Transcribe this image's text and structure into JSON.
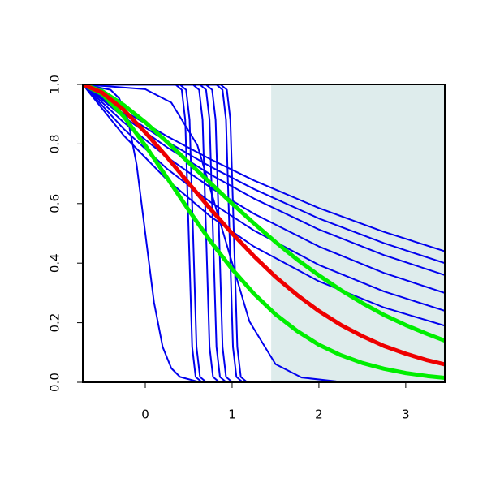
{
  "chart_data": {
    "type": "line",
    "xlim": [
      -0.72,
      3.45
    ],
    "ylim": [
      0,
      1
    ],
    "xticks": [
      0,
      1,
      2,
      3
    ],
    "yticks": [
      {
        "value": 0,
        "label": "0.0"
      },
      {
        "value": 0.2,
        "label": "0.2"
      },
      {
        "value": 0.4,
        "label": "0.4"
      },
      {
        "value": 0.6,
        "label": "0.6"
      },
      {
        "value": 0.8,
        "label": "0.8"
      },
      {
        "value": 1,
        "label": "1.0"
      }
    ],
    "shaded_xmin": 1.45,
    "shade_color": "#deecec",
    "series": [
      {
        "color": "#0000ee",
        "x": [
          -0.72,
          -0.25,
          0.25,
          0.75,
          1.25,
          2,
          2.75,
          3.45
        ],
        "values": [
          1,
          0.912,
          0.826,
          0.749,
          0.678,
          0.585,
          0.505,
          0.44
        ]
      },
      {
        "color": "#0000ee",
        "x": [
          -0.72,
          -0.25,
          0.25,
          0.75,
          1.25,
          2,
          2.75,
          3.45
        ],
        "values": [
          1,
          0.902,
          0.808,
          0.724,
          0.649,
          0.55,
          0.467,
          0.4
        ]
      },
      {
        "color": "#0000ee",
        "x": [
          -0.72,
          -0.25,
          0.25,
          0.75,
          1.25,
          2,
          2.75,
          3.45
        ],
        "values": [
          1,
          0.891,
          0.789,
          0.698,
          0.617,
          0.513,
          0.427,
          0.36
        ]
      },
      {
        "color": "#0000ee",
        "x": [
          -0.72,
          -0.25,
          0.25,
          0.75,
          1.25,
          2,
          2.75,
          3.45
        ],
        "values": [
          1,
          0.873,
          0.756,
          0.654,
          0.566,
          0.456,
          0.367,
          0.3
        ]
      },
      {
        "color": "#0000ee",
        "x": [
          -0.72,
          -0.25,
          0.25,
          0.75,
          1.25,
          2,
          2.75,
          3.45
        ],
        "values": [
          1,
          0.851,
          0.717,
          0.605,
          0.51,
          0.394,
          0.305,
          0.24
        ]
      },
      {
        "color": "#0000ee",
        "x": [
          -0.72,
          -0.25,
          0.25,
          0.75,
          1.25,
          2,
          2.75,
          3.45
        ],
        "values": [
          1,
          0.829,
          0.68,
          0.557,
          0.456,
          0.339,
          0.251,
          0.19
        ]
      },
      {
        "color": "#0000ee",
        "x": [
          -0.72,
          -0.4,
          -0.3,
          -0.2,
          -0.1,
          0,
          0.1,
          0.2,
          0.3,
          0.4,
          0.6,
          3.45
        ],
        "values": [
          1,
          0.982,
          0.953,
          0.881,
          0.731,
          0.5,
          0.269,
          0.119,
          0.047,
          0.018,
          0.0025,
          0
        ]
      },
      {
        "color": "#0000ee",
        "x": [
          -0.72,
          0,
          0.3,
          0.6,
          0.9,
          1.2,
          1.5,
          1.8,
          2.2,
          3.45
        ],
        "values": [
          1,
          0.984,
          0.939,
          0.796,
          0.5,
          0.204,
          0.061,
          0.016,
          0.003,
          0
        ]
      },
      {
        "color": "#0000ee",
        "x": [
          -0.72,
          0.35,
          0.42,
          0.46,
          0.5,
          0.54,
          0.58,
          0.65,
          3.45
        ],
        "values": [
          1,
          0.999,
          0.982,
          0.881,
          0.5,
          0.119,
          0.018,
          0.001,
          0
        ]
      },
      {
        "color": "#0000ee",
        "x": [
          -0.72,
          0.4,
          0.47,
          0.51,
          0.55,
          0.59,
          0.63,
          0.7,
          3.45
        ],
        "values": [
          1,
          0.999,
          0.982,
          0.881,
          0.5,
          0.119,
          0.018,
          0.001,
          0
        ]
      },
      {
        "color": "#0000ee",
        "x": [
          -0.72,
          0.55,
          0.62,
          0.66,
          0.7,
          0.74,
          0.78,
          0.85,
          3.45
        ],
        "values": [
          1,
          0.999,
          0.982,
          0.881,
          0.5,
          0.119,
          0.018,
          0.001,
          0
        ]
      },
      {
        "color": "#0000ee",
        "x": [
          -0.72,
          0.63,
          0.7,
          0.74,
          0.78,
          0.82,
          0.86,
          0.93,
          3.45
        ],
        "values": [
          1,
          0.999,
          0.982,
          0.881,
          0.5,
          0.119,
          0.018,
          0.001,
          0
        ]
      },
      {
        "color": "#0000ee",
        "x": [
          -0.72,
          0.7,
          0.77,
          0.81,
          0.85,
          0.89,
          0.93,
          1,
          3.45
        ],
        "values": [
          1,
          0.999,
          0.982,
          0.881,
          0.5,
          0.119,
          0.018,
          0.001,
          0
        ]
      },
      {
        "color": "#0000ee",
        "x": [
          -0.72,
          0.82,
          0.89,
          0.93,
          0.97,
          1.01,
          1.05,
          1.12,
          3.45
        ],
        "values": [
          1,
          0.999,
          0.982,
          0.881,
          0.5,
          0.119,
          0.018,
          0.001,
          0
        ]
      },
      {
        "color": "#0000ee",
        "x": [
          -0.72,
          0.87,
          0.94,
          0.98,
          1.02,
          1.06,
          1.1,
          1.17,
          3.45
        ],
        "values": [
          1,
          0.999,
          0.982,
          0.881,
          0.5,
          0.119,
          0.018,
          0.001,
          0
        ]
      }
    ],
    "highlight_series": [
      {
        "color": "#00ee00",
        "x": [
          -0.72,
          -0.5,
          -0.25,
          0,
          0.25,
          0.5,
          0.75,
          1,
          1.25,
          1.5,
          1.75,
          2,
          2.25,
          2.5,
          2.75,
          3,
          3.25,
          3.45
        ],
        "values": [
          1,
          0.978,
          0.931,
          0.873,
          0.807,
          0.738,
          0.669,
          0.6,
          0.534,
          0.471,
          0.412,
          0.359,
          0.31,
          0.266,
          0.226,
          0.192,
          0.162,
          0.14
        ]
      },
      {
        "color": "#00ee00",
        "x": [
          -0.72,
          -0.5,
          -0.25,
          0,
          0.25,
          0.5,
          0.75,
          1,
          1.25,
          1.5,
          1.75,
          2,
          2.25,
          2.5,
          2.75,
          3,
          3.25,
          3.45
        ],
        "values": [
          1,
          0.968,
          0.893,
          0.795,
          0.687,
          0.578,
          0.474,
          0.38,
          0.298,
          0.228,
          0.172,
          0.126,
          0.0914,
          0.0649,
          0.0454,
          0.031,
          0.0209,
          0.0151
        ]
      },
      {
        "color": "#ee0000",
        "x": [
          -0.72,
          -0.5,
          -0.25,
          0,
          0.25,
          0.5,
          0.75,
          1,
          1.25,
          1.5,
          1.75,
          2,
          2.25,
          2.5,
          2.75,
          3,
          3.25,
          3.45
        ],
        "values": [
          1,
          0.973,
          0.915,
          0.839,
          0.756,
          0.668,
          0.582,
          0.5,
          0.424,
          0.354,
          0.293,
          0.239,
          0.193,
          0.155,
          0.122,
          0.096,
          0.074,
          0.06
        ]
      }
    ]
  }
}
